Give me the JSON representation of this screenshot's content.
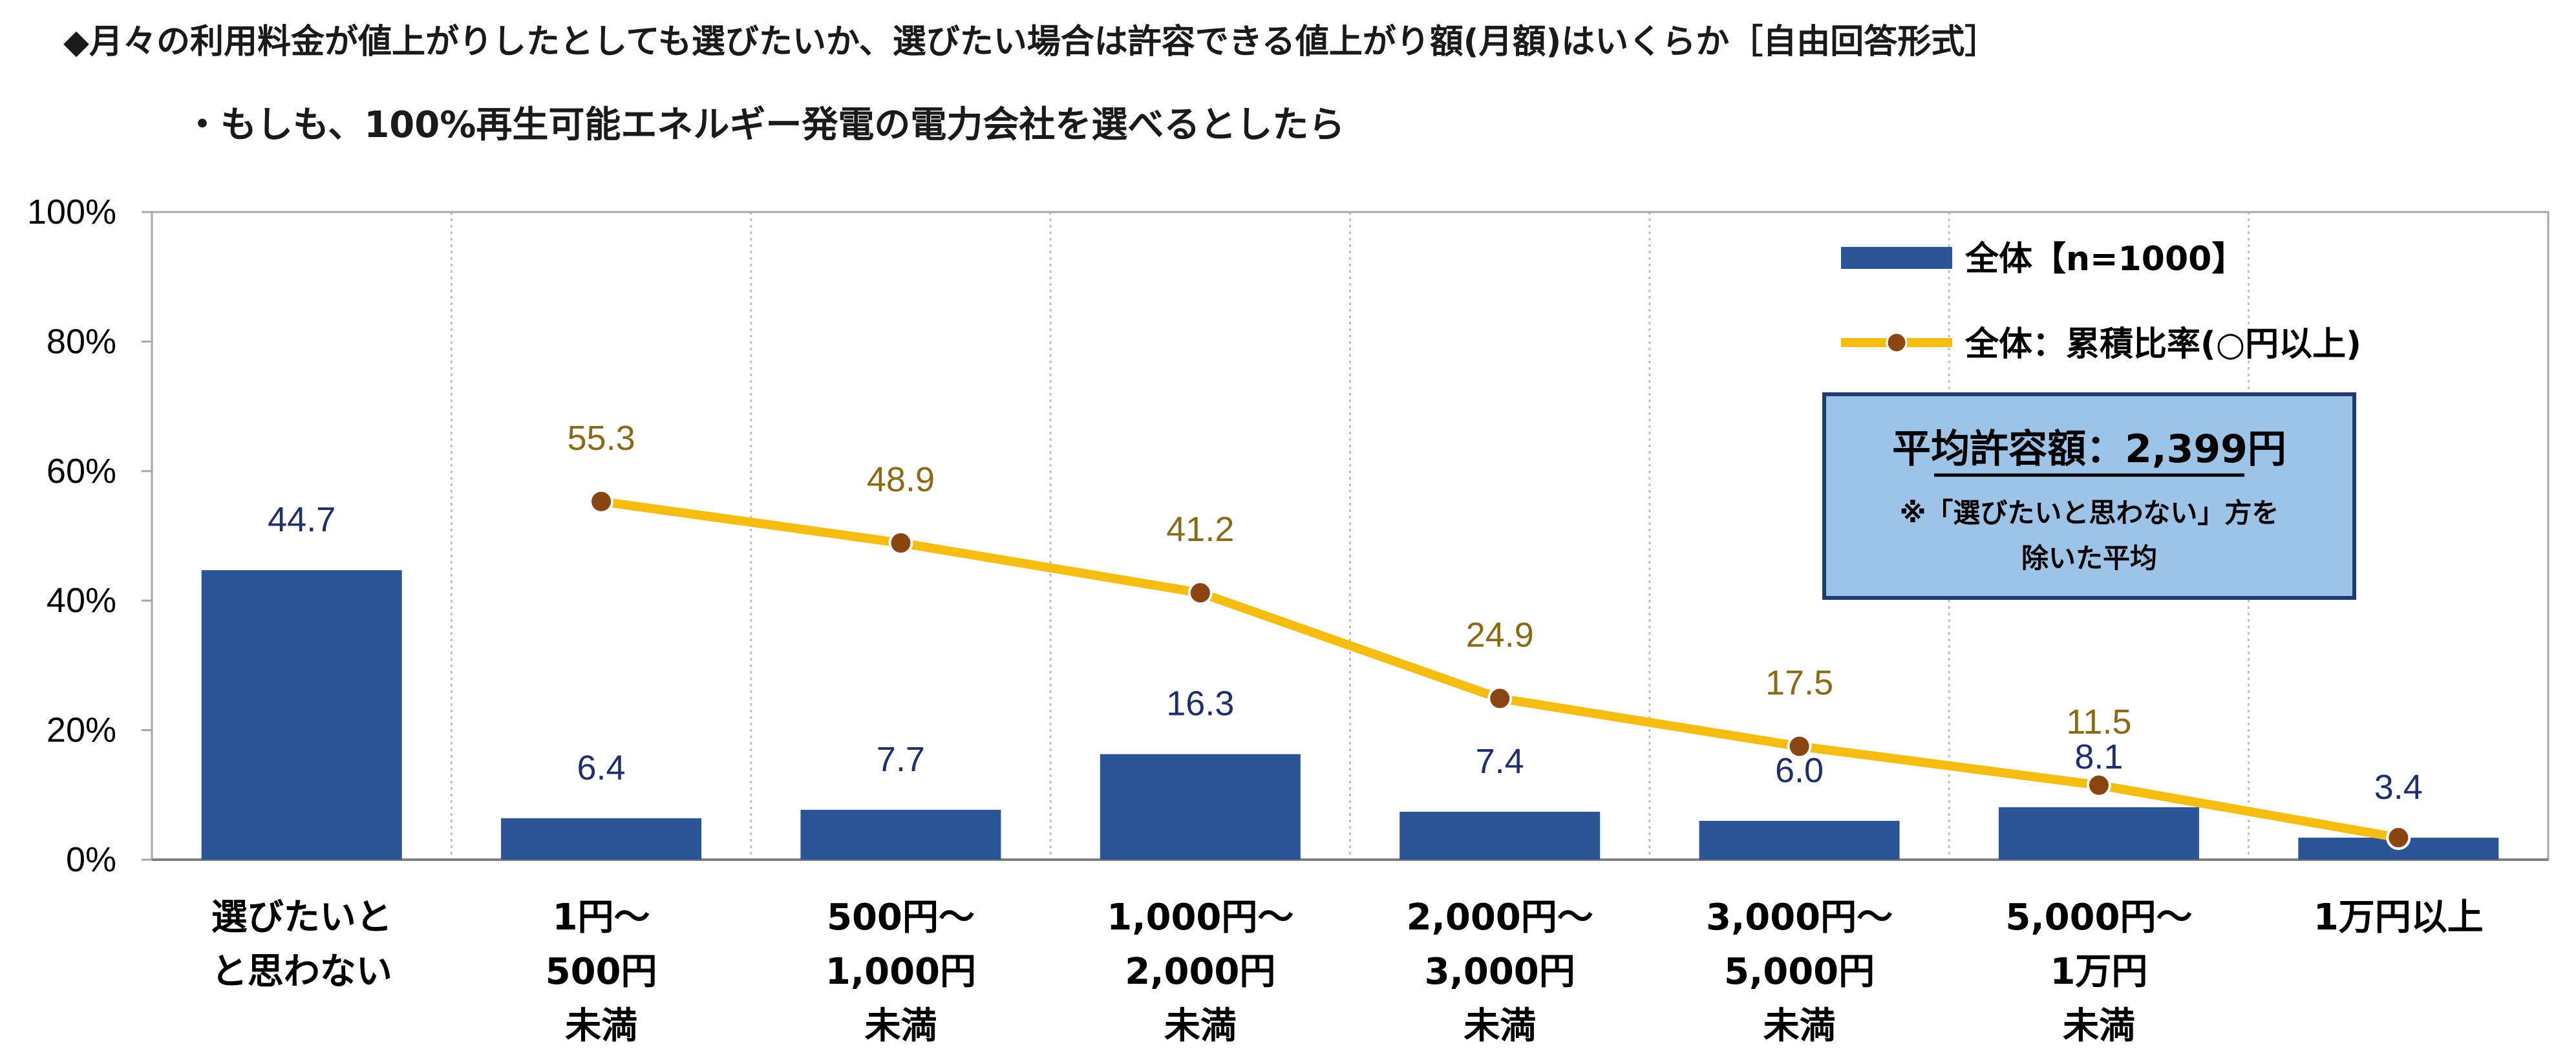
{
  "heading": {
    "line1": "◆月々の利用料金が値上がりしたとしても選びたいか、選びたい場合は許容できる値上がり額(月額)はいくらか［自由回答形式］",
    "line2": "・もしも、100%再生可能エネルギー発電の電力会社を選べるとしたら"
  },
  "chart_data": {
    "type": "bar",
    "categories": [
      [
        "選びたいと",
        "と思わない"
      ],
      [
        "1円～",
        "500円",
        "未満"
      ],
      [
        "500円～",
        "1,000円",
        "未満"
      ],
      [
        "1,000円～",
        "2,000円",
        "未満"
      ],
      [
        "2,000円～",
        "3,000円",
        "未満"
      ],
      [
        "3,000円～",
        "5,000円",
        "未満"
      ],
      [
        "5,000円～",
        "1万円",
        "未満"
      ],
      [
        "1万円以上"
      ]
    ],
    "series": [
      {
        "name": "全体【n=1000】",
        "kind": "bar",
        "color": "#2c5597",
        "values": [
          44.7,
          6.4,
          7.7,
          16.3,
          7.4,
          6.0,
          8.1,
          3.4
        ],
        "labels": [
          "44.7",
          "6.4",
          "7.7",
          "16.3",
          "7.4",
          "6.0",
          "8.1",
          "3.4"
        ]
      },
      {
        "name": "全体：累積比率(○円以上)",
        "kind": "line",
        "color": "#f5bd10",
        "marker_color": "#8b4513",
        "values": [
          null,
          55.3,
          48.9,
          41.2,
          24.9,
          17.5,
          11.5,
          3.4
        ],
        "labels": [
          "",
          "55.3",
          "48.9",
          "41.2",
          "24.9",
          "17.5",
          "11.5",
          ""
        ]
      }
    ],
    "y_ticks": [
      "0%",
      "20%",
      "40%",
      "60%",
      "80%",
      "100%"
    ],
    "ylim": [
      0,
      100
    ],
    "grid": "vertical dotted separators",
    "legend_position": "top-right",
    "annotation": {
      "title": "平均許容額：2,399円",
      "note_line1": "※「選びたいと思わない」方を",
      "note_line2": "除いた平均",
      "fill": "#9dc3e6"
    }
  }
}
